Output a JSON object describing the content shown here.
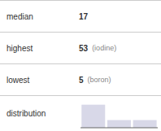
{
  "chart_data": {
    "type": "bar",
    "categories": [
      null,
      null,
      null
    ],
    "values": [
      3,
      1,
      1
    ],
    "color": "#d8d8e8",
    "ylim": [
      0,
      3.6
    ],
    "tick_labels": false,
    "grid": false,
    "annotations": [
      [
        "median",
        "17"
      ],
      [
        "highest",
        "53",
        "(iodine)"
      ],
      [
        "lowest",
        "5",
        "(boron)"
      ],
      [
        "distribution"
      ]
    ]
  }
}
